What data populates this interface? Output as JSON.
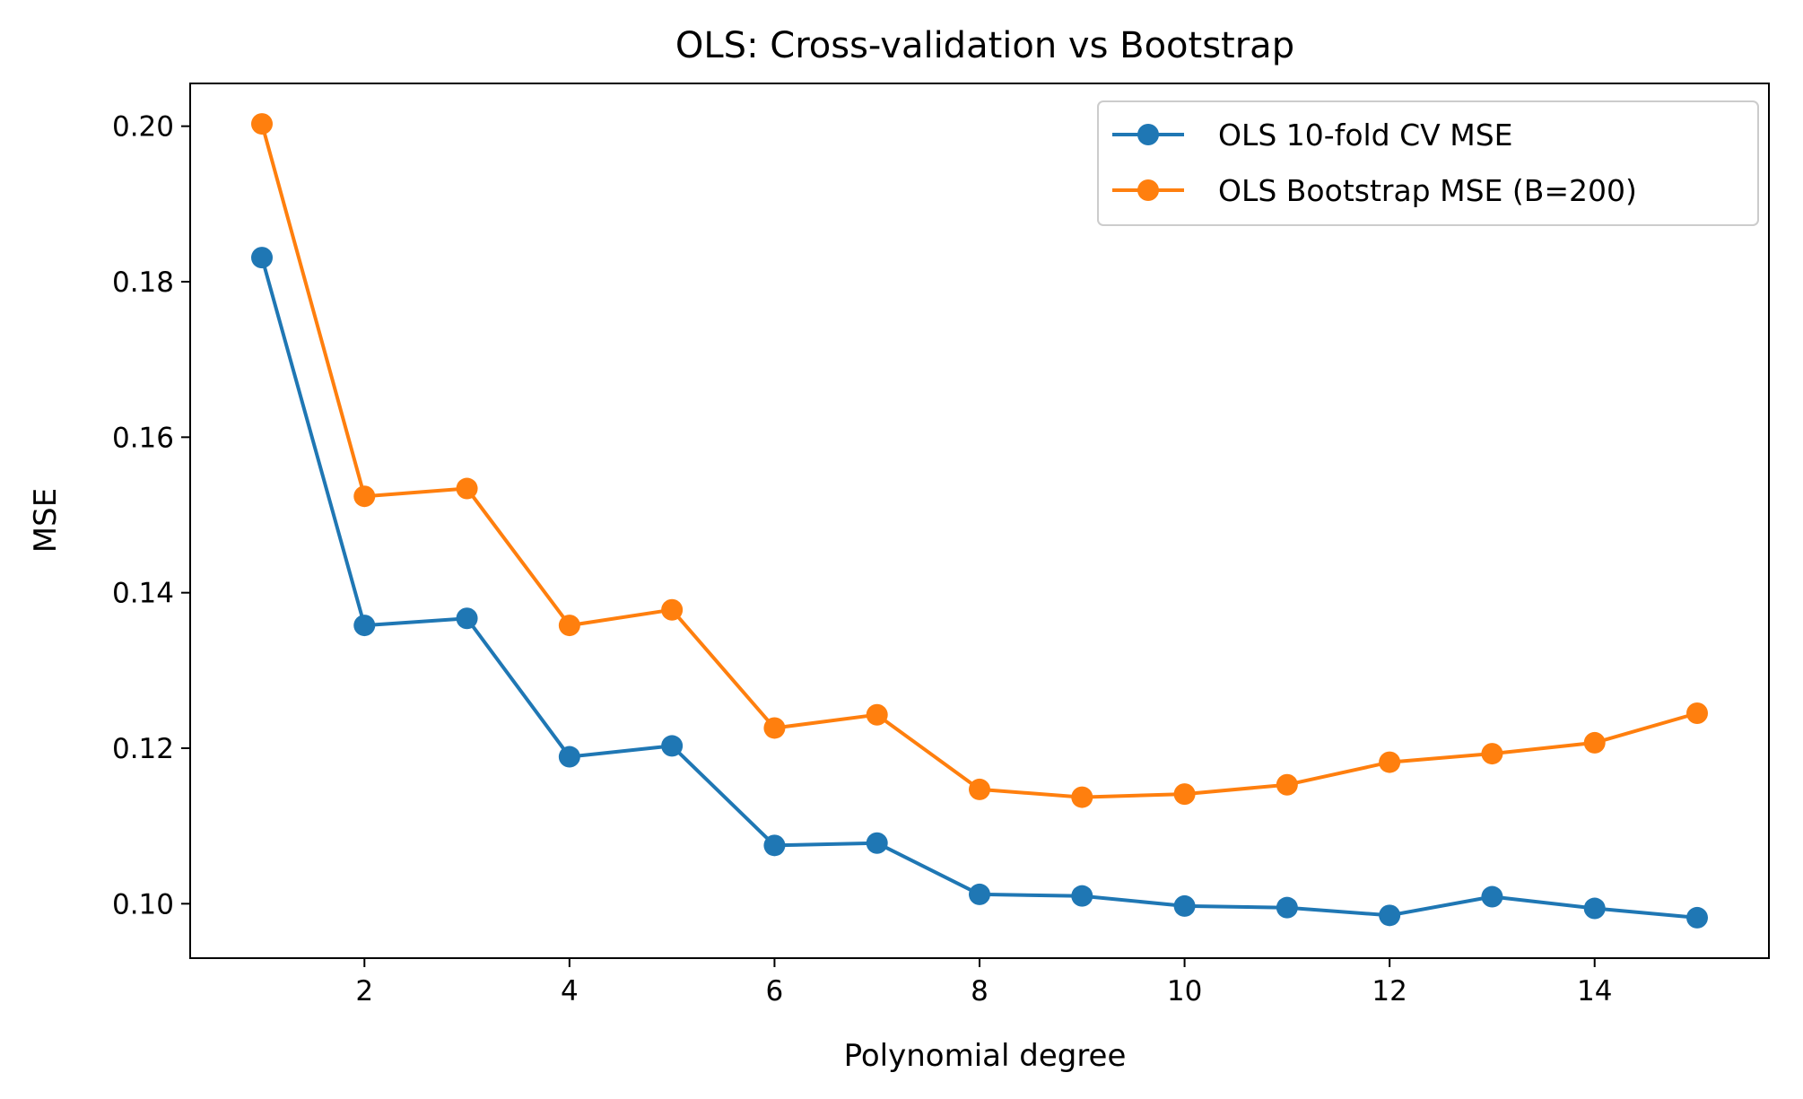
{
  "chart_data": {
    "type": "line",
    "title": "OLS: Cross-validation vs Bootstrap",
    "xlabel": "Polynomial degree",
    "ylabel": "MSE",
    "xlim": [
      0.3,
      15.7
    ],
    "ylim": [
      0.093,
      0.2055
    ],
    "xticks": [
      2,
      4,
      6,
      8,
      10,
      12,
      14
    ],
    "xtick_labels": [
      "2",
      "4",
      "6",
      "8",
      "10",
      "12",
      "14"
    ],
    "yticks": [
      0.1,
      0.12,
      0.14,
      0.16,
      0.18,
      0.2
    ],
    "ytick_labels": [
      "0.10",
      "0.12",
      "0.14",
      "0.16",
      "0.18",
      "0.20"
    ],
    "grid": false,
    "legend_position": "top-right",
    "x": [
      1,
      2,
      3,
      4,
      5,
      6,
      7,
      8,
      9,
      10,
      11,
      12,
      13,
      14,
      15
    ],
    "series": [
      {
        "name": "OLS 10-fold CV MSE",
        "color": "#1f77b4",
        "values": [
          0.1831,
          0.1358,
          0.1367,
          0.1189,
          0.1203,
          0.1075,
          0.1078,
          0.1012,
          0.101,
          0.0997,
          0.0995,
          0.0985,
          0.1009,
          0.0994,
          0.0982
        ]
      },
      {
        "name": "OLS Bootstrap MSE (B=200)",
        "color": "#ff7f0e",
        "values": [
          0.2003,
          0.1524,
          0.1534,
          0.1358,
          0.1378,
          0.1226,
          0.1243,
          0.1147,
          0.1137,
          0.1141,
          0.1153,
          0.1182,
          0.1193,
          0.1207,
          0.1245
        ]
      }
    ]
  }
}
